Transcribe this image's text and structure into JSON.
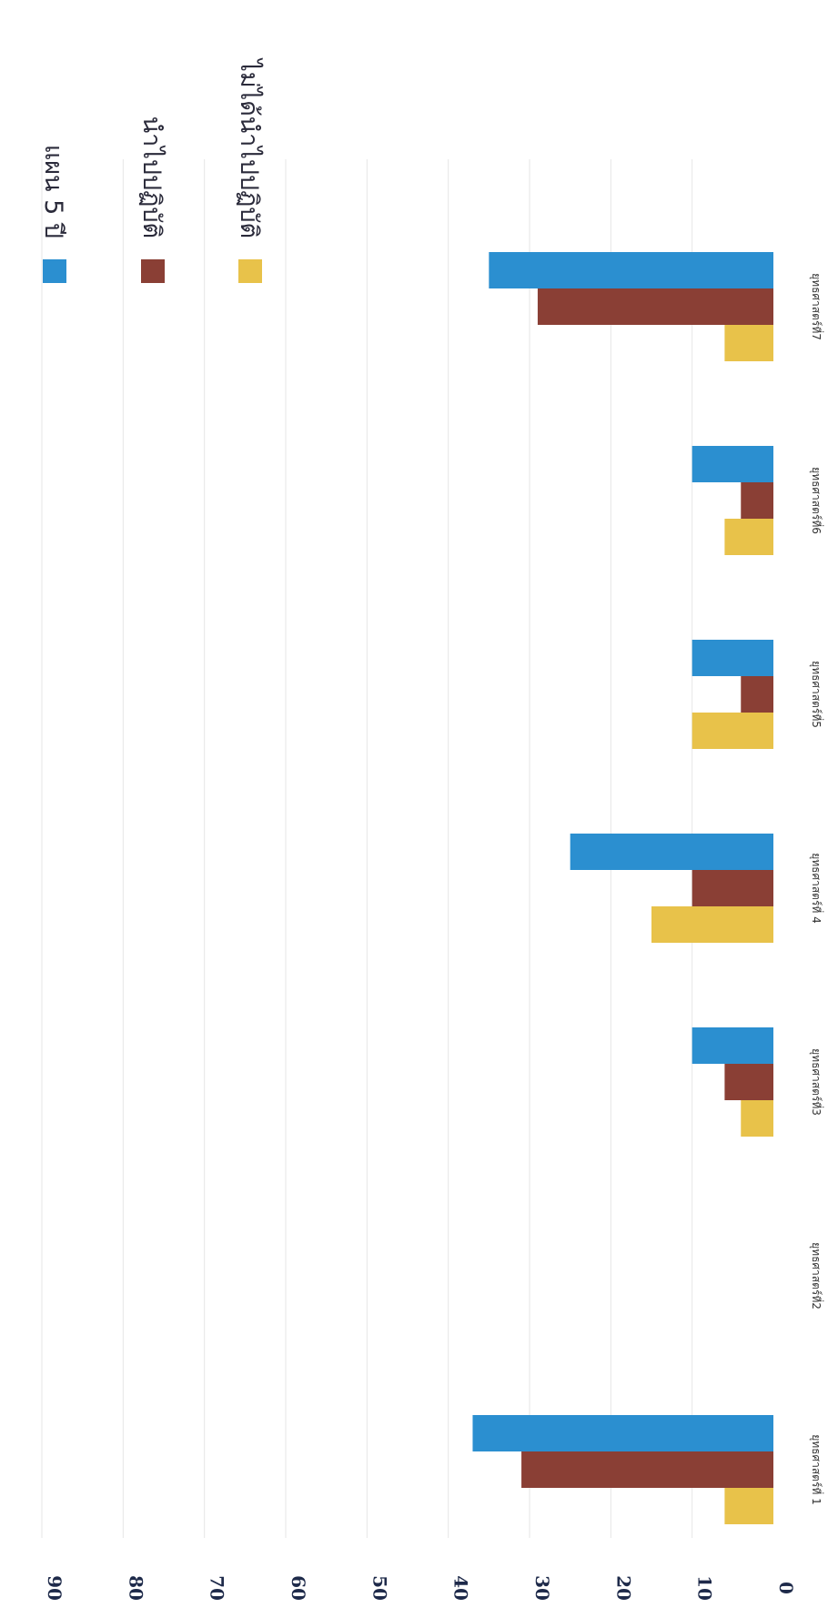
{
  "chart_data": {
    "type": "bar",
    "orientation": "horizontal",
    "categories": [
      "ยุทธศาสตร์ที่ 1",
      "ยุทธศาสตร์ที่2",
      "ยุทธศาสตร์ที่3",
      "ยุทธศาสตร์ที่ 4",
      "ยุทธศาสตร์ที่5",
      "ยุทธศาสตร์ที่6",
      "ยุทธศาสตร์ที่7"
    ],
    "series": [
      {
        "name": "แผน 5 ปี",
        "color": "#2b8fd0",
        "values": [
          37,
          0,
          10,
          25,
          10,
          10,
          35
        ]
      },
      {
        "name": "นำไปปฏิบัติ",
        "color": "#8a3f35",
        "values": [
          31,
          0,
          6,
          10,
          4,
          4,
          29
        ]
      },
      {
        "name": "ไม่ได้นำไปปฏิบัติ",
        "color": "#e8c24a",
        "values": [
          6,
          0,
          4,
          15,
          10,
          6,
          6
        ]
      }
    ],
    "xlim": [
      0,
      90
    ],
    "ticks": [
      "0",
      "10",
      "20",
      "30",
      "40",
      "50",
      "60",
      "70",
      "80",
      "90"
    ],
    "grid": true,
    "legend_position": "top-right"
  }
}
